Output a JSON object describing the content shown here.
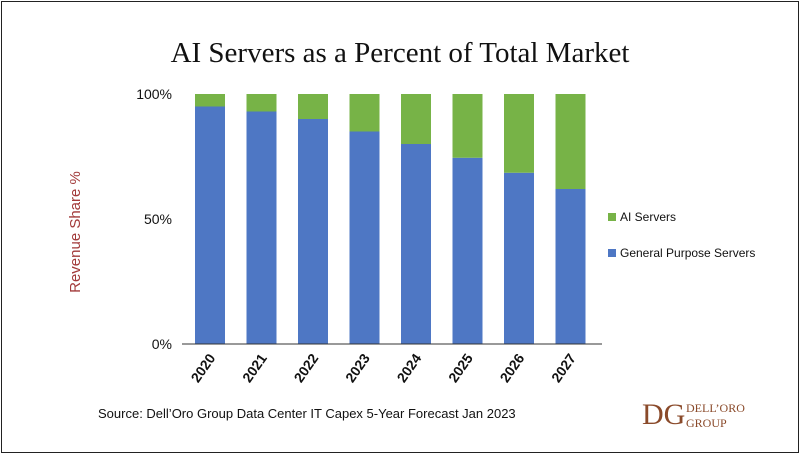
{
  "colors": {
    "general_purpose": "#4E77C4",
    "ai_servers": "#77B347",
    "ylabel": "#A23A3A",
    "logo": "#8A4A2A"
  },
  "chart_data": {
    "type": "bar",
    "stacked": true,
    "title": "AI Servers as a Percent of Total Market",
    "xlabel": "",
    "ylabel": "Revenue Share %",
    "ylim": [
      0,
      100
    ],
    "yticks": [
      "0%",
      "50%",
      "100%"
    ],
    "categories": [
      "2020",
      "2021",
      "2022",
      "2023",
      "2024",
      "2025",
      "2026",
      "2027"
    ],
    "series": [
      {
        "name": "General Purpose Servers",
        "values": [
          95,
          93,
          90,
          85,
          80,
          74.5,
          68.5,
          62
        ]
      },
      {
        "name": "AI Servers",
        "values": [
          5,
          7,
          10,
          15,
          20,
          25.5,
          31.5,
          38
        ]
      }
    ],
    "legend_position": "right",
    "grid": false
  },
  "source_text": "Source: Dell’Oro Group Data Center IT Capex 5-Year Forecast Jan 2023",
  "logo": {
    "letters": "DG",
    "line1": "DELL’ORO",
    "line2": "GROUP"
  }
}
